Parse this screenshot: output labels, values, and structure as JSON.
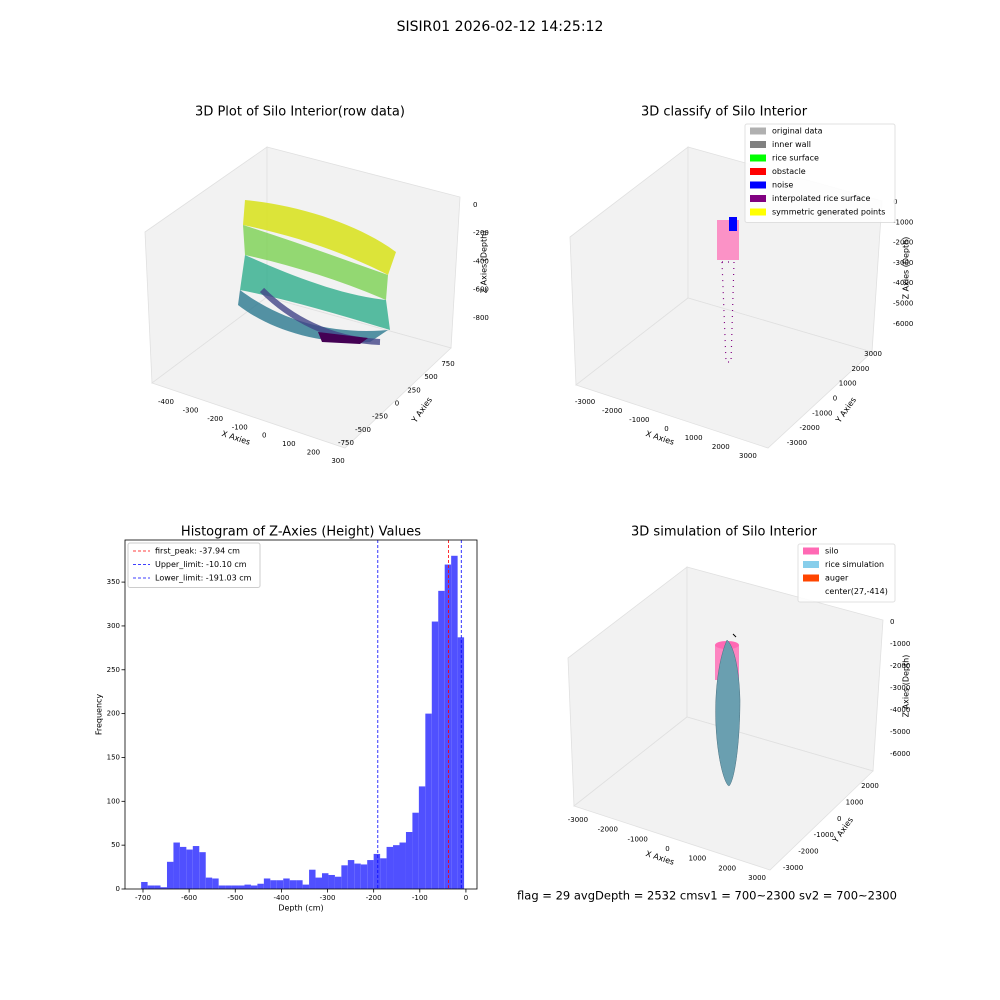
{
  "title": "SISIR01 2026-02-12 14:25:12",
  "chart_data": [
    {
      "type": "scatter3d",
      "title": "3D Plot of Silo Interior(row data)",
      "xlabel": "X Axies",
      "ylabel": "Y Axies",
      "zlabel": "Z Axies (Depth)",
      "xlim": [
        -450,
        330
      ],
      "xticks": [
        -400,
        -300,
        -200,
        -100,
        0,
        100,
        200,
        300
      ],
      "ylim": [
        -900,
        900
      ],
      "yticks": [
        -750,
        -500,
        -250,
        0,
        250,
        500,
        750
      ],
      "zlim": [
        -950,
        50
      ],
      "zticks": [
        -800,
        -600,
        -400,
        -200,
        0
      ]
    },
    {
      "type": "scatter3d",
      "title": "3D classify of Silo Interior",
      "xlabel": "X Axies",
      "ylabel": "Y Axies",
      "zlabel": "Z Axies (Depth)",
      "xlim": [
        -3500,
        3500
      ],
      "xticks": [
        -3000,
        -2000,
        -1000,
        0,
        1000,
        2000,
        3000
      ],
      "ylim": [
        -3500,
        3500
      ],
      "yticks": [
        -3000,
        -2000,
        -1000,
        0,
        1000,
        2000,
        3000
      ],
      "zlim": [
        -6800,
        300
      ],
      "zticks": [
        -6000,
        -5000,
        -4000,
        -3000,
        -2000,
        -1000,
        0
      ],
      "legend": "upper right",
      "series": [
        {
          "name": "original data",
          "color": "#b0b0b0"
        },
        {
          "name": "inner wall",
          "color": "#808080"
        },
        {
          "name": "rice surface",
          "color": "#00ff00"
        },
        {
          "name": "obstacle",
          "color": "#ff0000"
        },
        {
          "name": "noise",
          "color": "#0000ff"
        },
        {
          "name": "interpolated rice surface",
          "color": "#800080"
        },
        {
          "name": "symmetric generated points",
          "color": "#ffff00"
        }
      ]
    },
    {
      "type": "histogram",
      "title": "Histogram of Z-Axies (Height) Values",
      "xlabel": "Depth (cm)",
      "ylabel": "Frequency",
      "color": "#5050ff",
      "bins": [
        -704,
        -690,
        -676,
        -662,
        -648,
        -634,
        -620,
        -606,
        -592,
        -578,
        -564,
        -550,
        -536,
        -522,
        -508,
        -494,
        -480,
        -466,
        -452,
        -438,
        -424,
        -410,
        -396,
        -382,
        -368,
        -354,
        -340,
        -326,
        -312,
        -298,
        -284,
        -270,
        -256,
        -242,
        -228,
        -214,
        -200,
        -186,
        -172,
        -158,
        -144,
        -130,
        -116,
        -102,
        -88,
        -74,
        -60,
        -46,
        -32,
        -18,
        -4
      ],
      "counts": [
        8,
        4,
        4,
        2,
        31,
        53,
        48,
        45,
        49,
        42,
        13,
        12,
        4,
        4,
        4,
        4,
        5,
        4,
        6,
        12,
        10,
        10,
        12,
        10,
        10,
        5,
        22,
        13,
        18,
        16,
        14,
        27,
        33,
        29,
        28,
        33,
        40,
        35,
        48,
        50,
        53,
        65,
        87,
        117,
        200,
        305,
        340,
        370,
        380,
        287
      ],
      "xlim": [
        -739,
        24
      ],
      "xticks": [
        -700,
        -600,
        -500,
        -400,
        -300,
        -200,
        -100,
        0
      ],
      "ylim": [
        0,
        398
      ],
      "yticks": [
        0,
        50,
        100,
        150,
        200,
        250,
        300,
        350
      ],
      "legend": "upper left",
      "lines": [
        {
          "name": "first_peak: -37.94 cm",
          "value": -37.94,
          "color": "#ff0000"
        },
        {
          "name": "Upper_limit: -10.10 cm",
          "value": -10.1,
          "color": "#0000ff"
        },
        {
          "name": "Lower_limit: -191.03 cm",
          "value": -191.03,
          "color": "#0000ff"
        }
      ]
    },
    {
      "type": "surface3d",
      "title": "3D simulation of Silo Interior",
      "xlabel": "X Axies",
      "ylabel": "Y Axies",
      "zlabel": "Z Axies (Depth)",
      "xlim": [
        -3500,
        3500
      ],
      "xticks": [
        -3000,
        -2000,
        -1000,
        0,
        1000,
        2000,
        3000
      ],
      "ylim": [
        -3500,
        2800
      ],
      "yticks": [
        -3000,
        -2000,
        -1000,
        0,
        1000,
        2000
      ],
      "zlim": [
        -6600,
        400
      ],
      "zticks": [
        -6000,
        -5000,
        -4000,
        -3000,
        -2000,
        -1000,
        0
      ],
      "legend": "upper right",
      "series": [
        {
          "name": "silo",
          "color": "#ff69b4"
        },
        {
          "name": "rice simulation",
          "color": "#87ceeb"
        },
        {
          "name": "auger",
          "color": "#ff4500"
        },
        {
          "name": "center(27,-414)"
        }
      ]
    }
  ],
  "footer": "flag = 29  avgDepth = 2532 cmsv1 = 700~2300  sv2 = 700~2300"
}
